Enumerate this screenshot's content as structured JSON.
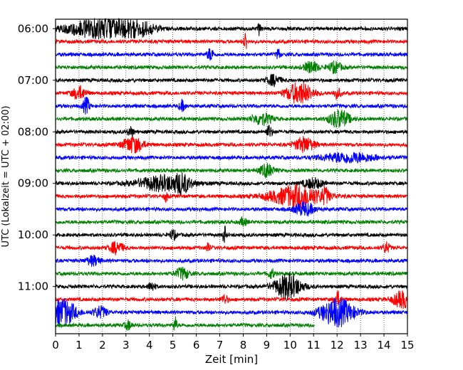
{
  "chart_data": {
    "type": "line",
    "title": "",
    "xlabel": "Zeit  [min]",
    "ylabel": "UTC (Lokalzeit = UTC + 02:00)",
    "xlim": [
      0,
      15
    ],
    "x_ticks": [
      "0",
      "1",
      "2",
      "3",
      "4",
      "5",
      "6",
      "7",
      "8",
      "9",
      "10",
      "11",
      "12",
      "13",
      "14",
      "15"
    ],
    "y_ticks": [
      "06:00",
      "07:00",
      "08:00",
      "09:00",
      "10:00",
      "11:00"
    ],
    "grid": "vertical dotted",
    "colors": [
      "#000000",
      "#ff0000",
      "#0000ff",
      "#008000"
    ],
    "trace_interval_min": 15,
    "traces": [
      {
        "start": "06:00",
        "color": "#000000",
        "end_min": 15,
        "events": [
          [
            1.7,
            0.9,
            2.2
          ],
          [
            3.4,
            0.6,
            1.8
          ],
          [
            8.7,
            0.05,
            1.8
          ]
        ]
      },
      {
        "start": "06:15",
        "color": "#ff0000",
        "end_min": 15,
        "events": [
          [
            8.1,
            0.05,
            2.4
          ]
        ]
      },
      {
        "start": "06:30",
        "color": "#0000ff",
        "end_min": 15,
        "events": [
          [
            6.6,
            0.1,
            1.5
          ],
          [
            9.5,
            0.05,
            1.5
          ]
        ]
      },
      {
        "start": "06:45",
        "color": "#008000",
        "end_min": 15,
        "events": [
          [
            10.9,
            0.2,
            1.5
          ],
          [
            11.9,
            0.2,
            1.3
          ]
        ]
      },
      {
        "start": "07:00",
        "color": "#000000",
        "end_min": 15,
        "events": [
          [
            9.3,
            0.2,
            1.3
          ]
        ]
      },
      {
        "start": "07:15",
        "color": "#ff0000",
        "end_min": 15,
        "events": [
          [
            1.0,
            0.2,
            1.6
          ],
          [
            10.4,
            0.4,
            2.6
          ],
          [
            12.0,
            0.1,
            1.4
          ]
        ]
      },
      {
        "start": "07:30",
        "color": "#0000ff",
        "end_min": 15,
        "events": [
          [
            1.3,
            0.1,
            2.0
          ],
          [
            5.4,
            0.1,
            1.2
          ]
        ]
      },
      {
        "start": "07:45",
        "color": "#008000",
        "end_min": 15,
        "events": [
          [
            8.8,
            0.3,
            1.4
          ],
          [
            12.1,
            0.3,
            2.2
          ]
        ]
      },
      {
        "start": "08:00",
        "color": "#000000",
        "end_min": 15,
        "events": [
          [
            9.1,
            0.1,
            1.4
          ],
          [
            3.2,
            0.1,
            1.1
          ]
        ]
      },
      {
        "start": "08:15",
        "color": "#ff0000",
        "end_min": 15,
        "events": [
          [
            3.3,
            0.3,
            2.0
          ],
          [
            10.6,
            0.3,
            1.8
          ]
        ]
      },
      {
        "start": "08:30",
        "color": "#0000ff",
        "end_min": 15,
        "events": [
          [
            12.5,
            0.8,
            1.2
          ]
        ]
      },
      {
        "start": "08:45",
        "color": "#008000",
        "end_min": 15,
        "events": [
          [
            9.0,
            0.2,
            1.6
          ]
        ]
      },
      {
        "start": "09:00",
        "color": "#000000",
        "end_min": 15,
        "events": [
          [
            4.6,
            0.8,
            1.8
          ],
          [
            5.4,
            0.2,
            1.6
          ],
          [
            11.0,
            0.3,
            1.2
          ]
        ]
      },
      {
        "start": "09:15",
        "color": "#ff0000",
        "end_min": 15,
        "events": [
          [
            10.3,
            0.8,
            2.6
          ],
          [
            4.7,
            0.05,
            1.4
          ],
          [
            11.5,
            0.1,
            1.4
          ]
        ]
      },
      {
        "start": "09:30",
        "color": "#0000ff",
        "end_min": 15,
        "events": [
          [
            10.6,
            0.3,
            1.6
          ]
        ]
      },
      {
        "start": "09:45",
        "color": "#008000",
        "end_min": 15,
        "events": [
          [
            8.0,
            0.1,
            1.0
          ]
        ]
      },
      {
        "start": "10:00",
        "color": "#000000",
        "end_min": 15,
        "events": [
          [
            7.2,
            0.05,
            2.2
          ],
          [
            5.0,
            0.1,
            1.2
          ]
        ]
      },
      {
        "start": "10:15",
        "color": "#ff0000",
        "end_min": 15,
        "events": [
          [
            2.6,
            0.2,
            1.5
          ],
          [
            6.5,
            0.05,
            1.6
          ],
          [
            14.1,
            0.1,
            1.3
          ]
        ]
      },
      {
        "start": "10:30",
        "color": "#0000ff",
        "end_min": 15,
        "events": [
          [
            1.6,
            0.2,
            1.2
          ]
        ]
      },
      {
        "start": "10:45",
        "color": "#008000",
        "end_min": 15,
        "events": [
          [
            5.4,
            0.2,
            1.4
          ],
          [
            9.2,
            0.1,
            1.1
          ]
        ]
      },
      {
        "start": "11:00",
        "color": "#000000",
        "end_min": 15,
        "events": [
          [
            9.9,
            0.4,
            3.0
          ],
          [
            4.1,
            0.1,
            1.1
          ]
        ]
      },
      {
        "start": "11:15",
        "color": "#ff0000",
        "end_min": 15,
        "events": [
          [
            12.0,
            0.1,
            2.0
          ],
          [
            14.8,
            0.3,
            2.0
          ],
          [
            7.2,
            0.1,
            1.1
          ]
        ]
      },
      {
        "start": "11:30",
        "color": "#0000ff",
        "end_min": 15,
        "events": [
          [
            0.3,
            0.4,
            3.2
          ],
          [
            12.0,
            0.5,
            3.4
          ],
          [
            1.9,
            0.2,
            1.4
          ]
        ]
      },
      {
        "start": "11:45",
        "color": "#008000",
        "end_min": 11.05,
        "events": [
          [
            5.1,
            0.05,
            2.0
          ],
          [
            3.1,
            0.1,
            1.1
          ]
        ]
      }
    ]
  }
}
